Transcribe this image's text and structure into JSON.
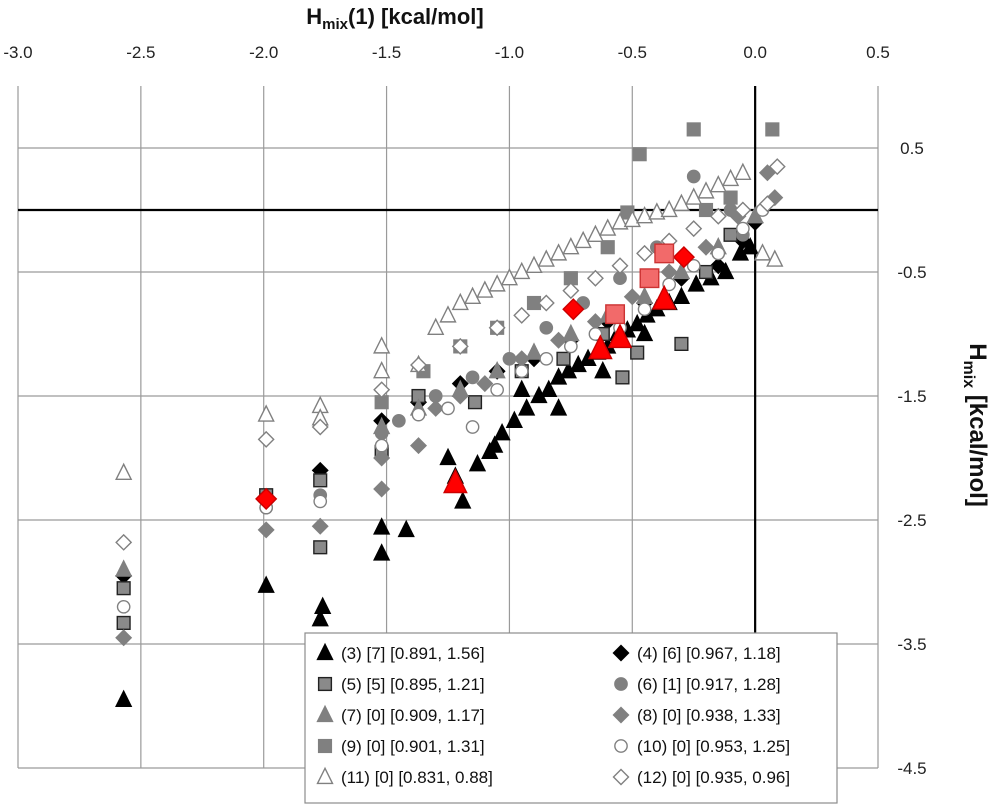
{
  "chart_data": {
    "type": "scatter",
    "title": "",
    "xlabel": "H",
    "xlabel_sub": "mix",
    "xlabel_rest": "(1) [kcal/mol]",
    "ylabel": "H",
    "ylabel_sub": "mix",
    "ylabel_rest": " [kcal/mol]",
    "xlim": [
      -3.0,
      0.5
    ],
    "ylim": [
      -4.5,
      1.0
    ],
    "x_ticks": [
      -3.0,
      -2.5,
      -2.0,
      -1.5,
      -1.0,
      -0.5,
      0.0,
      0.5
    ],
    "x_tick_labels": [
      "-3.0",
      "-2.5",
      "-2.0",
      "-1.5",
      "-1.0",
      "-0.5",
      "0.0",
      "0.5"
    ],
    "y_ticks": [
      0.5,
      -0.5,
      -1.5,
      -2.5,
      -3.5,
      -4.5
    ],
    "y_tick_labels": [
      "0.5",
      "-0.5",
      "-1.5",
      "-2.5",
      "-3.5",
      "-4.5"
    ],
    "grid": true,
    "legend_position": "bottom-right",
    "series": [
      {
        "name": "(3)  [7] [0.891, 1.56]",
        "marker": "triangle",
        "fill": "#000000",
        "stroke": "#000000",
        "x": [
          -2.57,
          -1.99,
          -1.77,
          -1.76,
          -1.52,
          -1.52,
          -1.42,
          -1.25,
          -1.22,
          -1.19,
          -1.13,
          -1.08,
          -1.03,
          -0.98,
          -0.93,
          -0.88,
          -0.84,
          -0.8,
          -0.76,
          -0.72,
          -0.68,
          -0.64,
          -0.6,
          -0.56,
          -0.52,
          -0.48,
          -0.44,
          -0.4,
          -0.35,
          -0.3,
          -0.24,
          -0.18,
          -0.12,
          -0.06,
          -0.02,
          -0.45,
          -0.62,
          -0.8,
          -1.06,
          -0.95
        ],
        "y": [
          -3.95,
          -3.03,
          -3.3,
          -3.2,
          -2.56,
          -2.77,
          -2.58,
          -2.0,
          -2.15,
          -2.35,
          -2.05,
          -1.95,
          -1.8,
          -1.7,
          -1.6,
          -1.5,
          -1.45,
          -1.35,
          -1.3,
          -1.25,
          -1.2,
          -1.15,
          -1.1,
          -1.0,
          -0.97,
          -0.92,
          -0.85,
          -0.8,
          -0.75,
          -0.7,
          -0.6,
          -0.55,
          -0.5,
          -0.35,
          -0.3,
          -1.0,
          -1.3,
          -1.6,
          -1.9,
          -1.45
        ]
      },
      {
        "name": "(4)  [6] [0.967, 1.18]",
        "marker": "diamond",
        "fill": "#000000",
        "stroke": "#000000",
        "x": [
          -2.57,
          -1.99,
          -1.77,
          -1.52,
          -1.37,
          -1.2,
          -1.05,
          -0.9,
          -0.75,
          -0.6,
          -0.45,
          -0.3,
          -0.15,
          -0.05,
          0.0
        ],
        "y": [
          -2.95,
          -2.35,
          -2.1,
          -1.7,
          -1.55,
          -1.4,
          -1.3,
          -1.2,
          -1.05,
          -0.9,
          -0.75,
          -0.55,
          -0.45,
          -0.25,
          -0.1
        ]
      },
      {
        "name": "(5)  [5] [0.895, 1.21]",
        "marker": "square",
        "fill": "#8a8a8a",
        "stroke": "#222222",
        "x": [
          -2.57,
          -2.57,
          -1.99,
          -1.77,
          -1.77,
          -1.52,
          -1.37,
          -1.14,
          -0.95,
          -0.78,
          -0.62,
          -0.54,
          -0.48,
          -0.3,
          -0.2,
          -0.1
        ],
        "y": [
          -3.05,
          -3.33,
          -2.3,
          -2.72,
          -2.18,
          -1.95,
          -1.5,
          -1.55,
          -1.3,
          -1.2,
          -1.0,
          -1.35,
          -1.15,
          -1.08,
          -0.5,
          -0.2
        ]
      },
      {
        "name": "(6)  [1] [0.917, 1.28]",
        "marker": "circle",
        "fill": "#808080",
        "stroke": "#808080",
        "x": [
          -0.25,
          -0.4,
          -0.55,
          -0.7,
          -0.85,
          -1.0,
          -1.15,
          -1.3,
          -1.45,
          -1.52,
          -1.77,
          -1.99,
          -0.1,
          -0.05
        ],
        "y": [
          0.27,
          -0.3,
          -0.55,
          -0.75,
          -0.95,
          -1.2,
          -1.35,
          -1.5,
          -1.7,
          -1.8,
          -2.3,
          -2.4,
          0.0,
          -0.2
        ]
      },
      {
        "name": "(7)  [0] [0.909, 1.17]",
        "marker": "triangle",
        "fill": "#808080",
        "stroke": "#808080",
        "x": [
          -2.57,
          -1.52,
          -1.37,
          -1.2,
          -1.05,
          -0.9,
          -0.75,
          -0.6,
          -0.45,
          -0.3,
          -0.15,
          0.0
        ],
        "y": [
          -2.9,
          -1.75,
          -1.6,
          -1.45,
          -1.3,
          -1.15,
          -1.0,
          -0.85,
          -0.7,
          -0.5,
          -0.3,
          -0.05
        ]
      },
      {
        "name": "(8)  [0] [0.938, 1.33]",
        "marker": "diamond",
        "fill": "#808080",
        "stroke": "#808080",
        "x": [
          -2.57,
          -1.99,
          -1.77,
          -1.52,
          -1.52,
          -1.37,
          -1.3,
          -1.2,
          -1.1,
          -0.95,
          -0.8,
          -0.65,
          -0.5,
          -0.35,
          -0.2,
          -0.07,
          0.05,
          0.08
        ],
        "y": [
          -3.45,
          -2.58,
          -2.55,
          -2.25,
          -2.0,
          -1.9,
          -1.6,
          -1.5,
          -1.4,
          -1.2,
          -1.05,
          -0.9,
          -0.7,
          -0.5,
          -0.3,
          -0.05,
          0.3,
          0.1
        ]
      },
      {
        "name": "(9)  [0] [0.901, 1.31]",
        "marker": "square",
        "fill": "#808080",
        "stroke": "#808080",
        "x": [
          -0.25,
          -0.47,
          0.07,
          -0.52,
          -0.6,
          -0.75,
          -0.9,
          -1.05,
          -1.2,
          -1.35,
          -1.52,
          -0.2,
          -0.1
        ],
        "y": [
          0.65,
          0.45,
          0.65,
          -0.02,
          -0.3,
          -0.55,
          -0.75,
          -0.95,
          -1.1,
          -1.3,
          -1.55,
          0.0,
          0.1
        ]
      },
      {
        "name": "(10)  [0] [0.953, 1.25]",
        "marker": "circle",
        "fill": "#ffffff",
        "stroke": "#808080",
        "x": [
          -2.57,
          -1.99,
          -1.77,
          -1.52,
          -1.37,
          -1.25,
          -1.15,
          -1.05,
          -0.95,
          -0.85,
          -0.75,
          -0.65,
          -0.55,
          -0.45,
          -0.35,
          -0.25,
          -0.15,
          -0.05,
          0.03
        ],
        "y": [
          -3.2,
          -2.4,
          -2.35,
          -1.9,
          -1.65,
          -1.6,
          -1.75,
          -1.45,
          -1.3,
          -1.2,
          -1.1,
          -1.0,
          -0.95,
          -0.8,
          -0.6,
          -0.45,
          -0.35,
          -0.15,
          0.0
        ]
      },
      {
        "name": "(11)  [0] [0.831, 0.88]",
        "marker": "triangle-open",
        "fill": "#ffffff",
        "stroke": "#808080",
        "x": [
          -2.57,
          -1.99,
          -1.77,
          -1.77,
          -1.52,
          -1.52,
          -1.37,
          -1.3,
          -1.25,
          -1.2,
          -1.15,
          -1.1,
          -1.05,
          -1.0,
          -0.95,
          -0.9,
          -0.85,
          -0.8,
          -0.75,
          -0.7,
          -0.65,
          -0.6,
          -0.55,
          -0.5,
          -0.45,
          -0.4,
          -0.35,
          -0.3,
          -0.25,
          -0.2,
          -0.15,
          -0.1,
          -0.05,
          0.03,
          0.08
        ],
        "y": [
          -2.12,
          -1.65,
          -1.58,
          -1.68,
          -1.1,
          -1.3,
          -1.25,
          -0.95,
          -0.85,
          -0.75,
          -0.7,
          -0.65,
          -0.6,
          -0.55,
          -0.5,
          -0.45,
          -0.4,
          -0.35,
          -0.3,
          -0.25,
          -0.2,
          -0.15,
          -0.1,
          -0.08,
          -0.05,
          -0.02,
          0.0,
          0.05,
          0.1,
          0.15,
          0.2,
          0.25,
          0.3,
          -0.35,
          -0.4
        ]
      },
      {
        "name": "(12)  [0] [0.935, 0.96]",
        "marker": "diamond-open",
        "fill": "#ffffff",
        "stroke": "#808080",
        "x": [
          -2.57,
          -1.99,
          -1.77,
          -1.52,
          -1.37,
          -1.2,
          -1.05,
          -0.95,
          -0.85,
          -0.75,
          -0.65,
          -0.55,
          -0.45,
          -0.35,
          -0.25,
          -0.15,
          -0.05,
          0.05,
          0.09
        ],
        "y": [
          -2.68,
          -1.85,
          -1.75,
          -1.45,
          -1.25,
          -1.1,
          -0.95,
          -0.85,
          -0.75,
          -0.65,
          -0.55,
          -0.45,
          -0.35,
          -0.25,
          -0.15,
          -0.05,
          0.0,
          0.05,
          0.35
        ]
      },
      {
        "name": "",
        "marker": "diamond",
        "fill": "#ff0000",
        "stroke": "#cc0000",
        "size": 1.35,
        "highlight": true,
        "x": [
          -1.99,
          -0.74,
          -0.29
        ],
        "y": [
          -2.33,
          -0.8,
          -0.38
        ]
      },
      {
        "name": "",
        "marker": "triangle",
        "fill": "#ff0000",
        "stroke": "#cc0000",
        "size": 1.5,
        "highlight": true,
        "x": [
          -1.22,
          -0.63,
          -0.55,
          -0.37
        ],
        "y": [
          -2.2,
          -1.12,
          -1.03,
          -0.72
        ]
      },
      {
        "name": "",
        "marker": "square",
        "fill": "#f26a6a",
        "stroke": "#cc3333",
        "size": 1.45,
        "highlight": true,
        "x": [
          -0.57,
          -0.43,
          -0.37
        ],
        "y": [
          -0.84,
          -0.55,
          -0.35
        ]
      }
    ],
    "legend": [
      "(3)  [7] [0.891, 1.56]",
      "(4)  [6] [0.967, 1.18]",
      "(5)  [5] [0.895, 1.21]",
      "(6)  [1] [0.917, 1.28]",
      "(7)  [0] [0.909, 1.17]",
      "(8)  [0] [0.938, 1.33]",
      "(9)  [0] [0.901, 1.31]",
      "(10)  [0] [0.953, 1.25]",
      "(11)  [0] [0.831, 0.88]",
      "(12)  [0] [0.935, 0.96]"
    ]
  }
}
